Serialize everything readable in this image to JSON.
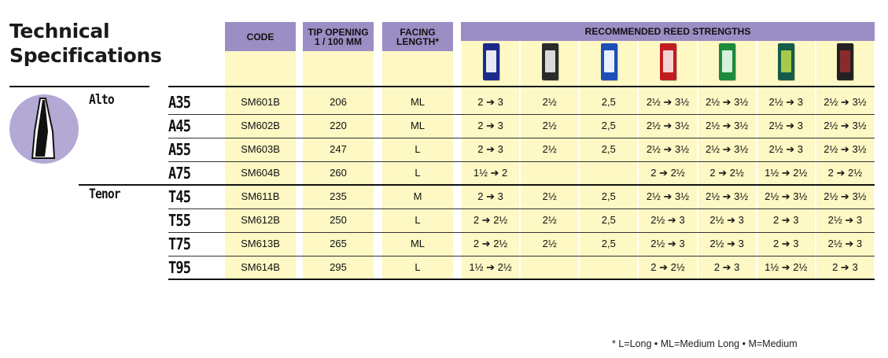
{
  "title": [
    "Technical",
    "Specifications"
  ],
  "headers": {
    "code": "CODE",
    "tip": [
      "TIP OPENING",
      "1 / 100 MM"
    ],
    "facing": [
      "FACING",
      "LENGTH*"
    ],
    "reeds": "RECOMMENDED REED STRENGTHS"
  },
  "reed_boxes": [
    {
      "name": "reed-box-1",
      "color": "#1c2a8c",
      "label": "#e9e9f2"
    },
    {
      "name": "reed-box-2",
      "color": "#2b2b2b",
      "label": "#d9d9d9"
    },
    {
      "name": "reed-box-3",
      "color": "#1d4fb8",
      "label": "#e8f0ff"
    },
    {
      "name": "reed-box-4",
      "color": "#c01c22",
      "label": "#f3d3d3"
    },
    {
      "name": "reed-box-5",
      "color": "#1d8a3c",
      "label": "#d7f0dc"
    },
    {
      "name": "reed-box-6",
      "color": "#155c4a",
      "label": "#a7c94a"
    },
    {
      "name": "reed-box-7",
      "color": "#222222",
      "label": "#8a2a2a"
    }
  ],
  "sections": [
    "Alto",
    "Tenor"
  ],
  "rows": [
    {
      "model": "A35",
      "code": "SM601B",
      "tip": "206",
      "facing": "ML",
      "reeds": [
        "2 ➔ 3",
        "2½",
        "2,5",
        "2½ ➔ 3½",
        "2½ ➔ 3½",
        "2½ ➔ 3",
        "2½ ➔ 3½"
      ]
    },
    {
      "model": "A45",
      "code": "SM602B",
      "tip": "220",
      "facing": "ML",
      "reeds": [
        "2 ➔ 3",
        "2½",
        "2,5",
        "2½ ➔ 3½",
        "2½ ➔ 3½",
        "2½ ➔ 3",
        "2½ ➔ 3½"
      ]
    },
    {
      "model": "A55",
      "code": "SM603B",
      "tip": "247",
      "facing": "L",
      "reeds": [
        "2 ➔ 3",
        "2½",
        "2,5",
        "2½ ➔ 3½",
        "2½ ➔ 3½",
        "2½ ➔ 3",
        "2½ ➔ 3½"
      ]
    },
    {
      "model": "A75",
      "code": "SM604B",
      "tip": "260",
      "facing": "L",
      "reeds": [
        "1½ ➔ 2",
        "",
        "",
        "2 ➔ 2½",
        "2 ➔ 2½",
        "1½ ➔ 2½",
        "2 ➔ 2½"
      ]
    },
    {
      "model": "T45",
      "code": "SM611B",
      "tip": "235",
      "facing": "M",
      "reeds": [
        "2 ➔ 3",
        "2½",
        "2,5",
        "2½ ➔ 3½",
        "2½ ➔ 3½",
        "2½ ➔ 3½",
        "2½ ➔ 3½"
      ]
    },
    {
      "model": "T55",
      "code": "SM612B",
      "tip": "250",
      "facing": "L",
      "reeds": [
        "2 ➔ 2½",
        "2½",
        "2,5",
        "2½ ➔ 3",
        "2½ ➔ 3",
        "2 ➔ 3",
        "2½ ➔ 3"
      ]
    },
    {
      "model": "T75",
      "code": "SM613B",
      "tip": "265",
      "facing": "ML",
      "reeds": [
        "2 ➔ 2½",
        "2½",
        "2,5",
        "2½ ➔ 3",
        "2½ ➔ 3",
        "2 ➔ 3",
        "2½ ➔ 3"
      ]
    },
    {
      "model": "T95",
      "code": "SM614B",
      "tip": "295",
      "facing": "L",
      "reeds": [
        "1½ ➔ 2½",
        "",
        "",
        "2 ➔ 2½",
        "2 ➔ 3",
        "1½ ➔ 2½",
        "2 ➔ 3"
      ]
    }
  ],
  "footnote": "* L=Long • ML=Medium Long • M=Medium",
  "colors": {
    "header": "#9b8ec4",
    "cell": "#fdf8c4",
    "text": "#111111"
  }
}
